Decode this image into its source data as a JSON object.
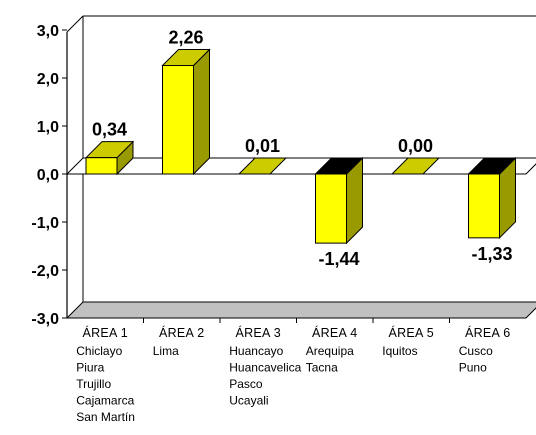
{
  "chart_data": {
    "type": "bar",
    "categories": [
      "ÁREA 1",
      "ÁREA 2",
      "ÁREA 3",
      "ÁREA 4",
      "ÁREA 5",
      "ÁREA 6"
    ],
    "values": [
      0.34,
      2.26,
      0.01,
      -1.44,
      0.0,
      -1.33
    ],
    "value_labels": [
      "0,34",
      "2,26",
      "0,01",
      "-1,44",
      "0,00",
      "-1,33"
    ],
    "category_cities": [
      [
        "Chiclayo",
        "Piura",
        "Trujillo",
        "Cajamarca",
        "San Martín"
      ],
      [
        "Lima"
      ],
      [
        "Huancayo",
        "Huancavelica",
        "Pasco",
        "Ucayali"
      ],
      [
        "Arequipa",
        "Tacna"
      ],
      [
        "Iquitos"
      ],
      [
        "Cusco",
        "Puno"
      ]
    ],
    "ylim": [
      -3.0,
      3.0
    ],
    "yticks": [
      3.0,
      2.0,
      1.0,
      0.0,
      -1.0,
      -2.0,
      -3.0
    ],
    "ytick_labels": [
      "3,0",
      "2,0",
      "1,0",
      "0,0",
      "-1,0",
      "-2,0",
      "-3,0"
    ],
    "grid": false,
    "legend": "none",
    "title": "",
    "xlabel": "",
    "ylabel": "",
    "colors": {
      "bar_front": "#ffff00",
      "bar_side": "#999900",
      "bar_top": "#cccc00",
      "bar_top_negative": "#000000",
      "zero_plane": "#cccc00",
      "floor": "#c0c0c0",
      "axis": "#000000"
    }
  }
}
